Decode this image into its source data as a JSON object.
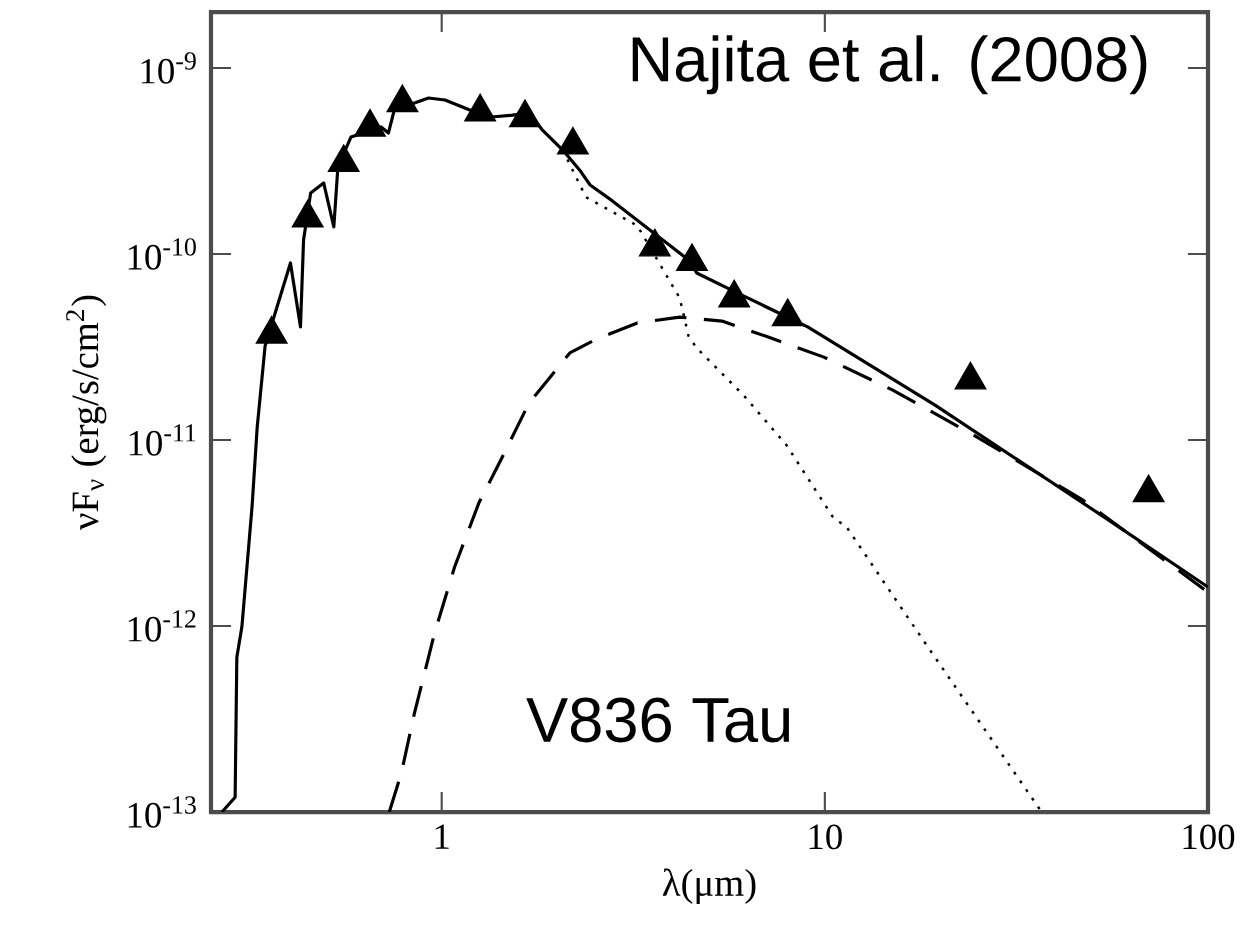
{
  "chart_data": {
    "type": "line",
    "xlabel": "λ(μm)",
    "ylabel": "νF$_{ν}$ (erg/s/cm$^{2}$)",
    "annotations": [
      "Najita et al. (2008)",
      "V836 Tau"
    ],
    "log": "xy",
    "xlim": [
      0.25,
      100
    ],
    "ylim": [
      1e-13,
      2e-09
    ],
    "xticks": [
      1,
      10,
      100
    ],
    "yticks": [
      {
        "value": 1e-13,
        "label": "10$^{-13}$"
      },
      {
        "value": 1e-12,
        "label": "10$^{-12}$"
      },
      {
        "value": 1e-11,
        "label": "10$^{-11}$"
      },
      {
        "value": 1e-10,
        "label": "10$^{-10}$"
      },
      {
        "value": 1e-09,
        "label": "10$^{-9}$"
      }
    ],
    "series": [
      {
        "line_style": "solid",
        "color": "#000000",
        "x": [
          0.267,
          0.289,
          0.292,
          0.301,
          0.32,
          0.33,
          0.346,
          0.403,
          0.428,
          0.436,
          0.455,
          0.492,
          0.523,
          0.536,
          0.58,
          0.695,
          0.726,
          0.752,
          0.849,
          0.924,
          1.02,
          1.22,
          1.35,
          1.53,
          1.69,
          1.83,
          2.07,
          2.29,
          2.44,
          2.79,
          3.57,
          4.41,
          4.63,
          5.98,
          9.02,
          19.4,
          53.6,
          100
        ],
        "values": [
          1e-13,
          1.2e-13,
          6.8e-13,
          9.9e-13,
          4.4e-12,
          1.17e-11,
          3.2e-11,
          8.95e-11,
          4.06e-11,
          1.19e-10,
          2.13e-10,
          2.41e-10,
          1.4e-10,
          2.94e-10,
          4.26e-10,
          4.82e-10,
          4.47e-10,
          5.94e-10,
          6.49e-10,
          6.9e-10,
          6.73e-10,
          5.8e-10,
          5.45e-10,
          5.58e-10,
          5.73e-10,
          4.65e-10,
          3.62e-10,
          2.83e-10,
          2.35e-10,
          1.93e-10,
          1.3e-10,
          9.29e-11,
          7.91e-11,
          6.1e-11,
          4.06e-11,
          1.54e-11,
          3.85e-12,
          1.62e-12
        ]
      },
      {
        "line_style": "dashed",
        "color": "#000000",
        "x": [
          0.73,
          0.785,
          0.849,
          0.958,
          1.08,
          1.25,
          1.44,
          1.69,
          2.16,
          2.51,
          3.24,
          4.18,
          5.39,
          7.0,
          9.94,
          15.0,
          24.9,
          47.2,
          100
        ],
        "values": [
          1e-13,
          1.62e-13,
          3.4e-13,
          9.16e-13,
          2.07e-12,
          4.58e-12,
          8.11e-12,
          1.58e-11,
          2.94e-11,
          3.45e-11,
          4.26e-11,
          4.58e-11,
          4.36e-11,
          3.62e-11,
          2.79e-11,
          1.86e-11,
          1.04e-11,
          4.75e-12,
          1.52e-12
        ]
      },
      {
        "line_style": "dotted",
        "color": "#000000",
        "x": [
          2.07,
          2.38,
          3.24,
          4.18,
          4.41,
          4.63,
          6.12,
          7.94,
          10.5,
          11.4,
          18.2,
          36.8
        ],
        "values": [
          3.62e-10,
          2.02e-10,
          1.42e-10,
          5.8e-11,
          3.62e-11,
          3.12e-11,
          1.75e-11,
          9.4e-12,
          3.85e-12,
          3.4e-12,
          8.2e-13,
          1e-13
        ]
      },
      {
        "type": "scatter",
        "marker": "triangle",
        "color": "#000000",
        "x": [
          0.36,
          0.447,
          0.555,
          0.65,
          0.79,
          1.26,
          1.65,
          2.2,
          3.6,
          4.5,
          5.8,
          8.0,
          24,
          70
        ],
        "values": [
          3.7e-11,
          1.56e-10,
          3.1e-10,
          4.8e-10,
          6.5e-10,
          5.8e-10,
          5.4e-10,
          3.85e-10,
          1.09e-10,
          9.1e-11,
          5.8e-11,
          4.6e-11,
          2.1e-11,
          5.2e-12
        ]
      }
    ]
  }
}
